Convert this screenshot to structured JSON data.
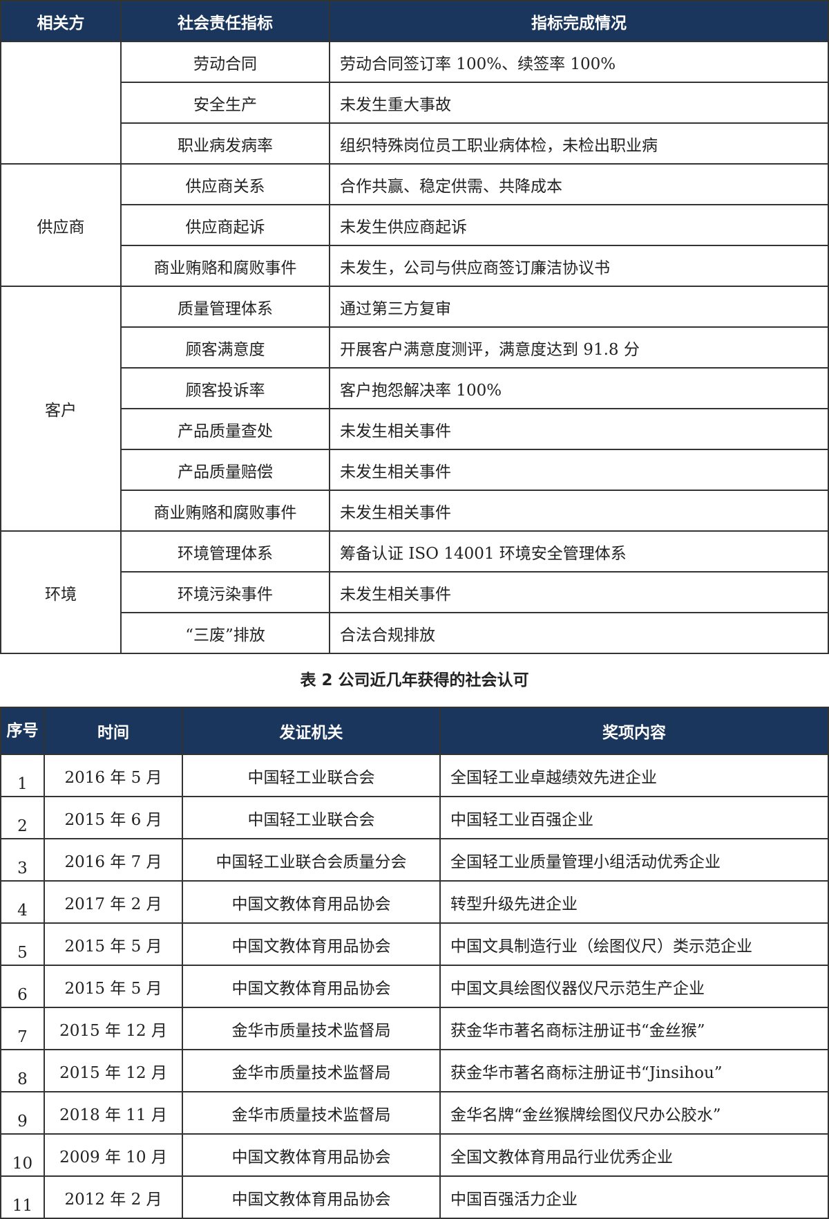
{
  "table1": {
    "headers": [
      "相关方",
      "社会责任指标",
      "指标完成情况"
    ],
    "groups": [
      {
        "party": "",
        "rows": [
          [
            "劳动合同",
            "劳动合同签订率 100%、续签率 100%"
          ],
          [
            "安全生产",
            "未发生重大事故"
          ],
          [
            "职业病发病率",
            "组织特殊岗位员工职业病体检，未检出职业病"
          ]
        ]
      },
      {
        "party": "供应商",
        "rows": [
          [
            "供应商关系",
            "合作共赢、稳定供需、共降成本"
          ],
          [
            "供应商起诉",
            "未发生供应商起诉"
          ],
          [
            "商业贿赂和腐败事件",
            "未发生，公司与供应商签订廉洁协议书"
          ]
        ]
      },
      {
        "party": "客户",
        "rows": [
          [
            "质量管理体系",
            "通过第三方复审"
          ],
          [
            "顾客满意度",
            "开展客户满意度测评，满意度达到 91.8 分"
          ],
          [
            "顾客投诉率",
            "客户抱怨解决率 100%"
          ],
          [
            "产品质量查处",
            "未发生相关事件"
          ],
          [
            "产品质量赔偿",
            "未发生相关事件"
          ],
          [
            "商业贿赂和腐败事件",
            "未发生相关事件"
          ]
        ]
      },
      {
        "party": "环境",
        "rows": [
          [
            "环境管理体系",
            "筹备认证 ISO 14001 环境安全管理体系"
          ],
          [
            "环境污染事件",
            "未发生相关事件"
          ],
          [
            "“三废”排放",
            "合法合规排放"
          ]
        ]
      }
    ]
  },
  "caption": "表 2  公司近几年获得的社会认可",
  "table2": {
    "headers": [
      "序号",
      "时间",
      "发证机关",
      "奖项内容"
    ],
    "rows": [
      [
        "1",
        "2016 年 5 月",
        "中国轻工业联合会",
        "全国轻工业卓越绩效先进企业"
      ],
      [
        "2",
        "2015 年 6 月",
        "中国轻工业联合会",
        "中国轻工业百强企业"
      ],
      [
        "3",
        "2016 年 7 月",
        "中国轻工业联合会质量分会",
        "全国轻工业质量管理小组活动优秀企业"
      ],
      [
        "4",
        "2017 年 2 月",
        "中国文教体育用品协会",
        "转型升级先进企业"
      ],
      [
        "5",
        "2015 年 5 月",
        "中国文教体育用品协会",
        "中国文具制造行业（绘图仪尺）类示范企业"
      ],
      [
        "6",
        "2015 年 5 月",
        "中国文教体育用品协会",
        "中国文具绘图仪器仪尺示范生产企业"
      ],
      [
        "7",
        "2015 年 12 月",
        "金华市质量技术监督局",
        "获金华市著名商标注册证书“金丝猴”"
      ],
      [
        "8",
        "2015 年 12 月",
        "金华市质量技术监督局",
        "获金华市著名商标注册证书“Jinsihou”"
      ],
      [
        "9",
        "2018 年 11 月",
        "金华市质量技术监督局",
        "金华名牌“金丝猴牌绘图仪尺办公胶水”"
      ],
      [
        "10",
        "2009 年 10 月",
        "中国文教体育用品协会",
        "全国文教体育用品行业优秀企业"
      ],
      [
        "11",
        "2012 年 2 月",
        "中国文教体育用品协会",
        "中国百强活力企业"
      ]
    ]
  },
  "colors": {
    "header_bg": "#1a365d",
    "header_text": "#ffffff",
    "border": "#333333"
  }
}
